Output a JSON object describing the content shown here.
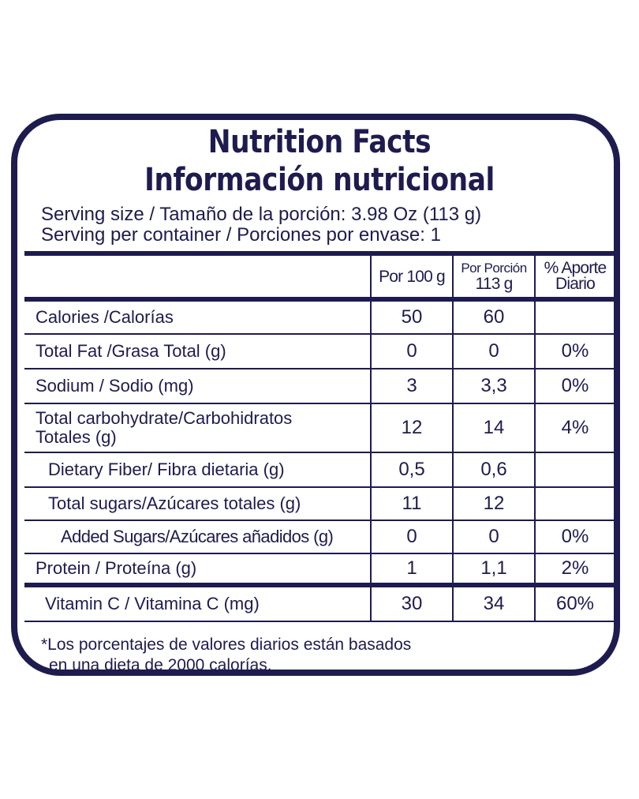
{
  "title_en": "Nutrition Facts",
  "title_es": "Información nutricional",
  "serving_size": "Serving size / Tamaño de la porción: 3.98 Oz (113 g)",
  "servings_per_container": "Serving per container / Porciones por envase: 1",
  "columns": {
    "per100": "Por 100 g",
    "per_portion_l1": "Por Porción",
    "per_portion_l2": "113 g",
    "dv_l1": "% Aporte",
    "dv_l2": "Diario"
  },
  "rows": [
    {
      "name": "Calories /Calorías",
      "per100": "50",
      "portion": "60",
      "dv": ""
    },
    {
      "name": "Total Fat /Grasa Total (g)",
      "per100": "0",
      "portion": "0",
      "dv": "0%"
    },
    {
      "name": "Sodium / Sodio (mg)",
      "per100": "3",
      "portion": "3,3",
      "dv": "0%"
    },
    {
      "name_l1": "Total carbohydrate/Carbohidratos",
      "name_l2": "Totales (g)",
      "per100": "12",
      "portion": "14",
      "dv": "4%"
    },
    {
      "name": "Dietary Fiber/ Fibra dietaria (g)",
      "per100": "0,5",
      "portion": "0,6",
      "dv": ""
    },
    {
      "name": "Total sugars/Azúcares totales (g)",
      "per100": "11",
      "portion": "12",
      "dv": ""
    },
    {
      "name": "Added Sugars/Azúcares añadidos (g)",
      "per100": "0",
      "portion": "0",
      "dv": "0%"
    },
    {
      "name": "Protein / Proteína (g)",
      "per100": "1",
      "portion": "1,1",
      "dv": "2%"
    },
    {
      "name": "Vitamin C / Vitamina C (mg)",
      "per100": "30",
      "portion": "34",
      "dv": "60%"
    }
  ],
  "footnote_l1": "*Los porcentajes de valores diarios están basados",
  "footnote_l2": "en una dieta de 2000 calorías.",
  "colors": {
    "ink": "#1e1b4f",
    "background": "#ffffff"
  }
}
